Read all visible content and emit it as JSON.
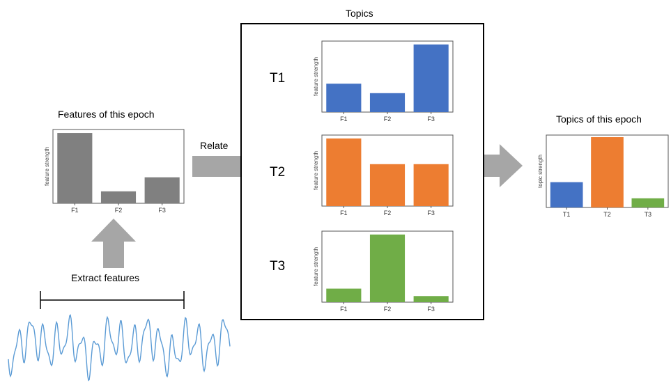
{
  "labels": {
    "features_title": "Features of this epoch",
    "topics_title": "Topics",
    "topics_epoch_title": "Topics of this epoch",
    "relate": "Relate",
    "extract": "Extract features"
  },
  "colors": {
    "gray": "#808080",
    "blue": "#4472c4",
    "orange": "#ed7d31",
    "green": "#70ad47",
    "arrow": "#a6a6a6",
    "signal": "#5b9bd5"
  },
  "chart_data": [
    {
      "id": "features",
      "type": "bar",
      "categories": [
        "F1",
        "F2",
        "F3"
      ],
      "values": [
        1.0,
        0.17,
        0.37
      ],
      "ylabel": "feature strength",
      "ylim": [
        0,
        1.05
      ],
      "color": "#808080"
    },
    {
      "id": "t1",
      "type": "bar",
      "label": "T1",
      "categories": [
        "F1",
        "F2",
        "F3"
      ],
      "values": [
        0.42,
        0.28,
        1.0
      ],
      "ylabel": "feature strength",
      "ylim": [
        0,
        1.05
      ],
      "color": "#4472c4"
    },
    {
      "id": "t2",
      "type": "bar",
      "label": "T2",
      "categories": [
        "F1",
        "F2",
        "F3"
      ],
      "values": [
        1.0,
        0.62,
        0.62
      ],
      "ylabel": "feature strength",
      "ylim": [
        0,
        1.05
      ],
      "color": "#ed7d31"
    },
    {
      "id": "t3",
      "type": "bar",
      "label": "T3",
      "categories": [
        "F1",
        "F2",
        "F3"
      ],
      "values": [
        0.2,
        1.0,
        0.09
      ],
      "ylabel": "feature strength",
      "ylim": [
        0,
        1.05
      ],
      "color": "#70ad47"
    },
    {
      "id": "topics",
      "type": "bar",
      "categories": [
        "T1",
        "T2",
        "T3"
      ],
      "values": [
        0.36,
        1.0,
        0.13
      ],
      "bar_colors": [
        "#4472c4",
        "#ed7d31",
        "#70ad47"
      ],
      "ylabel": "topic strength",
      "ylim": [
        0,
        1.03
      ]
    }
  ]
}
